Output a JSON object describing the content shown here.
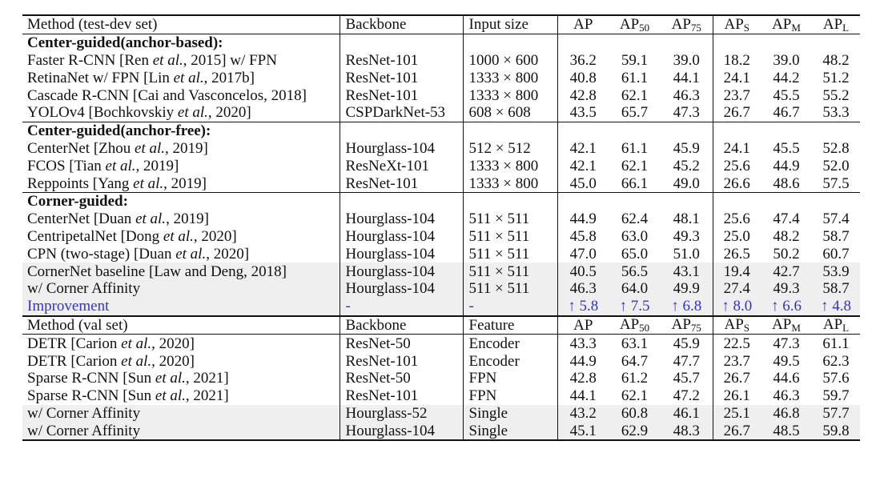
{
  "header_test": {
    "method": "Method (test-dev set)",
    "backbone": "Backbone",
    "col3": "Input size",
    "ap": "AP",
    "ap50": "AP",
    "ap50_sub": "50",
    "ap75": "AP",
    "ap75_sub": "75",
    "aps": "AP",
    "aps_sub": "S",
    "apm": "AP",
    "apm_sub": "M",
    "apl": "AP",
    "apl_sub": "L"
  },
  "groups": [
    {
      "title": "Center-guided(anchor-based):",
      "rows": [
        {
          "method_parts": [
            "Faster R-CNN [Ren ",
            "et al.",
            ", 2015] w/ FPN"
          ],
          "backbone": "ResNet-101",
          "input": "1000 × 600",
          "values": [
            "36.2",
            "59.1",
            "39.0",
            "18.2",
            "39.0",
            "48.2"
          ]
        },
        {
          "method_parts": [
            "RetinaNet w/ FPN [Lin ",
            "et al.",
            ", 2017b]"
          ],
          "backbone": "ResNet-101",
          "input": "1333 × 800",
          "values": [
            "40.8",
            "61.1",
            "44.1",
            "24.1",
            "44.2",
            "51.2"
          ]
        },
        {
          "method_parts": [
            "Cascade R-CNN [Cai and Vasconcelos, 2018]",
            "",
            ""
          ],
          "backbone": "ResNet-101",
          "input": "1333 × 800",
          "values": [
            "42.8",
            "62.1",
            "46.3",
            "23.7",
            "45.5",
            "55.2"
          ]
        },
        {
          "method_parts": [
            "YOLOv4 [Bochkovskiy ",
            "et al.",
            ", 2020]"
          ],
          "backbone": "CSPDarkNet-53",
          "input": "608 × 608",
          "values": [
            "43.5",
            "65.7",
            "47.3",
            "26.7",
            "46.7",
            "53.3"
          ]
        }
      ]
    },
    {
      "title": "Center-guided(anchor-free):",
      "rows": [
        {
          "method_parts": [
            "CenterNet [Zhou ",
            "et al.",
            ", 2019]"
          ],
          "backbone": "Hourglass-104",
          "input": "512 × 512",
          "values": [
            "42.1",
            "61.1",
            "45.9",
            "24.1",
            "45.5",
            "52.8"
          ]
        },
        {
          "method_parts": [
            "FCOS [Tian ",
            "et al.",
            ", 2019]"
          ],
          "backbone": "ResNeXt-101",
          "input": "1333 × 800",
          "values": [
            "42.1",
            "62.1",
            "45.2",
            "25.6",
            "44.9",
            "52.0"
          ]
        },
        {
          "method_parts": [
            "Reppoints [Yang ",
            "et al.",
            ", 2019]"
          ],
          "backbone": "ResNet-101",
          "input": "1333 × 800",
          "values": [
            "45.0",
            "66.1",
            "49.0",
            "26.6",
            "48.6",
            "57.5"
          ]
        }
      ]
    },
    {
      "title": "Corner-guided:",
      "rows": [
        {
          "method_parts": [
            "CenterNet [Duan ",
            "et al.",
            ", 2019]"
          ],
          "backbone": "Hourglass-104",
          "input": "511 × 511",
          "values": [
            "44.9",
            "62.4",
            "48.1",
            "25.6",
            "47.4",
            "57.4"
          ]
        },
        {
          "method_parts": [
            "CentripetalNet [Dong ",
            "et al.",
            ", 2020]"
          ],
          "backbone": "Hourglass-104",
          "input": "511 × 511",
          "values": [
            "45.8",
            "63.0",
            "49.3",
            "25.0",
            "48.2",
            "58.7"
          ]
        },
        {
          "method_parts": [
            "CPN (two-stage) [Duan ",
            "et al.",
            ", 2020]"
          ],
          "backbone": "Hourglass-104",
          "input": "511 × 511",
          "values": [
            "47.0",
            "65.0",
            "51.0",
            "26.5",
            "50.2",
            "60.7"
          ]
        }
      ]
    }
  ],
  "ours_test": [
    {
      "method": "CornerNet baseline [Law and Deng, 2018]",
      "backbone": "Hourglass-104",
      "input": "511 × 511",
      "values": [
        "40.5",
        "56.5",
        "43.1",
        "19.4",
        "42.7",
        "53.9"
      ]
    },
    {
      "method": "w/ Corner Affinity",
      "backbone": "Hourglass-104",
      "input": "511 × 511",
      "values": [
        "46.3",
        "64.0",
        "49.9",
        "27.4",
        "49.3",
        "58.7"
      ]
    }
  ],
  "improvement": {
    "label": "Improvement",
    "backbone": "-",
    "input": "-",
    "values": [
      "↑ 5.8",
      "↑ 7.5",
      "↑ 6.8",
      "↑ 8.0",
      "↑ 6.6",
      "↑ 4.8"
    ],
    "color": "#2f33d6"
  },
  "header_val": {
    "method": "Method (val set)",
    "backbone": "Backbone",
    "col3": "Feature",
    "ap": "AP",
    "ap50": "AP",
    "ap50_sub": "50",
    "ap75": "AP",
    "ap75_sub": "75",
    "aps": "AP",
    "aps_sub": "S",
    "apm": "AP",
    "apm_sub": "M",
    "apl": "AP",
    "apl_sub": "L"
  },
  "val_rows": [
    {
      "method_parts": [
        "DETR [Carion ",
        "et al.",
        ", 2020]"
      ],
      "backbone": "ResNet-50",
      "feature": "Encoder",
      "values": [
        "43.3",
        "63.1",
        "45.9",
        "22.5",
        "47.3",
        "61.1"
      ]
    },
    {
      "method_parts": [
        "DETR [Carion ",
        "et al.",
        ", 2020]"
      ],
      "backbone": "ResNet-101",
      "feature": "Encoder",
      "values": [
        "44.9",
        "64.7",
        "47.7",
        "23.7",
        "49.5",
        "62.3"
      ]
    },
    {
      "method_parts": [
        "Sparse R-CNN [Sun ",
        "et al.",
        ", 2021]"
      ],
      "backbone": "ResNet-50",
      "feature": "FPN",
      "values": [
        "42.8",
        "61.2",
        "45.7",
        "26.7",
        "44.6",
        "57.6"
      ]
    },
    {
      "method_parts": [
        "Sparse R-CNN [Sun ",
        "et al.",
        ", 2021]"
      ],
      "backbone": "ResNet-101",
      "feature": "FPN",
      "values": [
        "44.1",
        "62.1",
        "47.2",
        "26.1",
        "46.3",
        "59.7"
      ]
    }
  ],
  "ours_val": [
    {
      "method": "w/ Corner Affinity",
      "backbone": "Hourglass-52",
      "feature": "Single",
      "values": [
        "43.2",
        "60.8",
        "46.1",
        "25.1",
        "46.8",
        "57.7"
      ]
    },
    {
      "method": "w/ Corner Affinity",
      "backbone": "Hourglass-104",
      "feature": "Single",
      "values": [
        "45.1",
        "62.9",
        "48.3",
        "26.7",
        "48.5",
        "59.8"
      ]
    }
  ],
  "colors": {
    "shade": "#efefef",
    "improvement": "#2f33d6",
    "rule": "#111111"
  }
}
